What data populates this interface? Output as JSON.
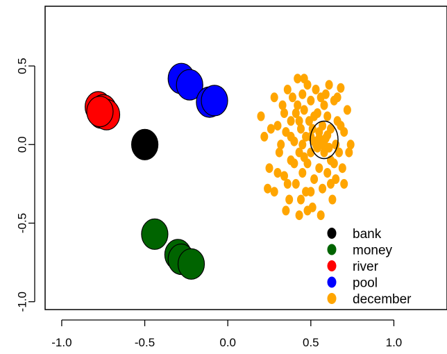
{
  "chart_data": {
    "type": "scatter",
    "title": "",
    "xlabel": "",
    "ylabel": "",
    "xlim": [
      -1.1,
      1.32
    ],
    "ylim": [
      -1.05,
      0.88
    ],
    "grid": false,
    "legend_position": "bottom-right",
    "x_ticks": [
      {
        "value": -1.0,
        "label": "-1.0"
      },
      {
        "value": -0.5,
        "label": "-0.5"
      },
      {
        "value": 0.0,
        "label": "0.0"
      },
      {
        "value": 0.5,
        "label": "0.5"
      },
      {
        "value": 1.0,
        "label": "1.0"
      }
    ],
    "y_ticks": [
      {
        "value": -1.0,
        "label": "-1.0"
      },
      {
        "value": -0.5,
        "label": "-0.5"
      },
      {
        "value": 0.0,
        "label": "0.0"
      },
      {
        "value": 0.5,
        "label": "0.5"
      }
    ],
    "series": [
      {
        "name": "bank",
        "color": "#000000",
        "marker": "large",
        "points": [
          [
            -0.5,
            0.0
          ]
        ]
      },
      {
        "name": "money",
        "color": "#006400",
        "marker": "large",
        "points": [
          [
            -0.44,
            -0.57
          ],
          [
            -0.3,
            -0.7
          ],
          [
            -0.28,
            -0.73
          ],
          [
            -0.22,
            -0.76
          ]
        ]
      },
      {
        "name": "river",
        "color": "#ff0000",
        "marker": "large",
        "points": [
          [
            -0.78,
            0.24
          ],
          [
            -0.75,
            0.22
          ],
          [
            -0.76,
            0.2
          ],
          [
            -0.73,
            0.19
          ],
          [
            -0.77,
            0.21
          ]
        ]
      },
      {
        "name": "pool",
        "color": "#0000ff",
        "marker": "large",
        "points": [
          [
            -0.28,
            0.42
          ],
          [
            -0.23,
            0.38
          ],
          [
            -0.11,
            0.27
          ],
          [
            -0.08,
            0.28
          ]
        ]
      },
      {
        "name": "december",
        "color": "#ffa500",
        "marker": "small",
        "points": [
          [
            0.2,
            0.18
          ],
          [
            0.22,
            0.05
          ],
          [
            0.25,
            -0.15
          ],
          [
            0.28,
            -0.3
          ],
          [
            0.3,
            0.12
          ],
          [
            0.31,
            -0.05
          ],
          [
            0.33,
            0.25
          ],
          [
            0.34,
            -0.2
          ],
          [
            0.35,
            0.08
          ],
          [
            0.36,
            0.35
          ],
          [
            0.37,
            -0.35
          ],
          [
            0.38,
            0.15
          ],
          [
            0.38,
            -0.1
          ],
          [
            0.39,
            0.3
          ],
          [
            0.4,
            0.02
          ],
          [
            0.41,
            -0.25
          ],
          [
            0.41,
            0.2
          ],
          [
            0.42,
            0.42
          ],
          [
            0.43,
            -0.05
          ],
          [
            0.43,
            -0.45
          ],
          [
            0.44,
            0.1
          ],
          [
            0.45,
            0.32
          ],
          [
            0.45,
            -0.18
          ],
          [
            0.46,
            0.22
          ],
          [
            0.47,
            -0.3
          ],
          [
            0.47,
            0.05
          ],
          [
            0.48,
            0.38
          ],
          [
            0.48,
            -0.12
          ],
          [
            0.49,
            0.15
          ],
          [
            0.5,
            -0.05
          ],
          [
            0.5,
            0.28
          ],
          [
            0.51,
            -0.4
          ],
          [
            0.51,
            0.1
          ],
          [
            0.52,
            -0.22
          ],
          [
            0.53,
            0.35
          ],
          [
            0.53,
            0.0
          ],
          [
            0.54,
            0.2
          ],
          [
            0.55,
            -0.15
          ],
          [
            0.55,
            0.08
          ],
          [
            0.56,
            0.3
          ],
          [
            0.57,
            -0.28
          ],
          [
            0.57,
            0.12
          ],
          [
            0.58,
            -0.05
          ],
          [
            0.58,
            0.25
          ],
          [
            0.59,
            0.04
          ],
          [
            0.6,
            -0.18
          ],
          [
            0.6,
            0.18
          ],
          [
            0.61,
            0.38
          ],
          [
            0.62,
            -0.1
          ],
          [
            0.62,
            0.1
          ],
          [
            0.63,
            -0.35
          ],
          [
            0.64,
            0.28
          ],
          [
            0.65,
            0.0
          ],
          [
            0.65,
            -0.22
          ],
          [
            0.66,
            0.15
          ],
          [
            0.67,
            -0.05
          ],
          [
            0.68,
            0.36
          ],
          [
            0.69,
            -0.15
          ],
          [
            0.7,
            0.08
          ],
          [
            0.72,
            0.22
          ],
          [
            0.73,
            -0.05
          ],
          [
            0.74,
            0.0
          ],
          [
            0.45,
            0.0
          ],
          [
            0.5,
            0.05
          ],
          [
            0.52,
            0.02
          ],
          [
            0.55,
            0.04
          ],
          [
            0.57,
            0.0
          ],
          [
            0.6,
            0.06
          ],
          [
            0.58,
            0.02
          ],
          [
            0.54,
            -0.02
          ],
          [
            0.4,
            -0.12
          ],
          [
            0.36,
            -0.25
          ],
          [
            0.32,
            0.0
          ],
          [
            0.44,
            -0.35
          ],
          [
            0.46,
            0.42
          ],
          [
            0.42,
            0.25
          ],
          [
            0.48,
            -0.42
          ],
          [
            0.52,
            0.18
          ],
          [
            0.38,
            0.05
          ],
          [
            0.66,
            0.3
          ],
          [
            0.62,
            -0.25
          ],
          [
            0.3,
            -0.18
          ],
          [
            0.34,
            0.2
          ],
          [
            0.56,
            -0.45
          ],
          [
            0.64,
            -0.12
          ],
          [
            0.7,
            -0.25
          ],
          [
            0.26,
            0.1
          ],
          [
            0.24,
            -0.28
          ],
          [
            0.28,
            0.3
          ],
          [
            0.68,
            0.12
          ],
          [
            0.35,
            -0.42
          ],
          [
            0.59,
            0.32
          ],
          [
            0.5,
            -0.3
          ],
          [
            0.46,
            -0.08
          ],
          [
            0.43,
            0.15
          ],
          [
            0.61,
            -0.02
          ]
        ]
      }
    ],
    "overlay": {
      "name": "bank",
      "x": 0.58,
      "y": 0.03
    }
  }
}
